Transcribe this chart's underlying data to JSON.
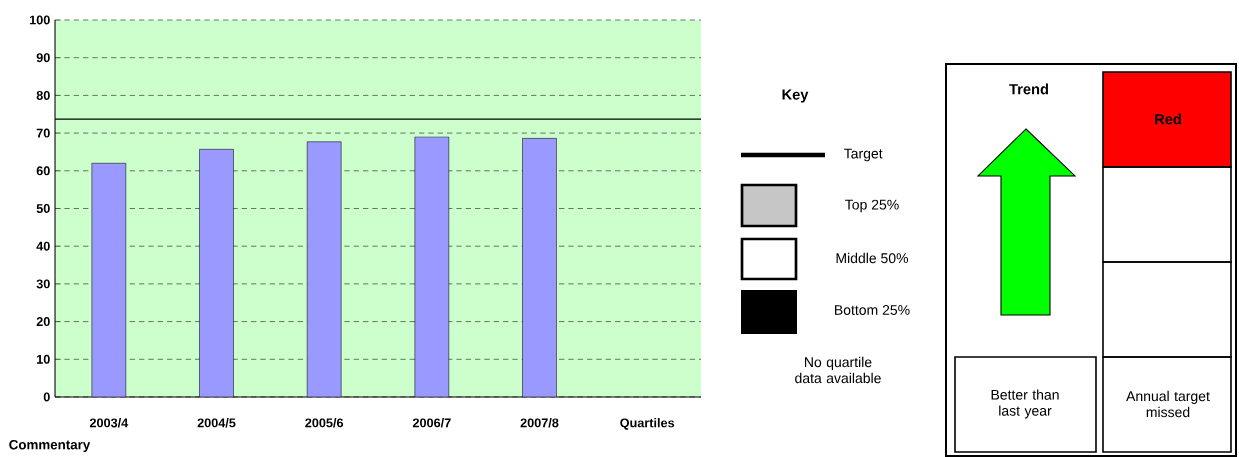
{
  "chart_data": {
    "type": "bar",
    "categories": [
      "2003/4",
      "2004/5",
      "2005/6",
      "2006/7",
      "2007/8",
      "Quartiles"
    ],
    "values": [
      62.0,
      65.7,
      67.7,
      69.0,
      68.6,
      null
    ],
    "color": "#9999ff",
    "ylim": [
      0,
      100
    ],
    "yticks": [
      0,
      10,
      20,
      30,
      40,
      50,
      60,
      70,
      80,
      90,
      100
    ],
    "grid": "y",
    "ref_lines": [
      {
        "axis": "y",
        "value": 73.7,
        "label": "Target",
        "color": "#000000"
      }
    ],
    "annotations": [
      "Key",
      "Top 25%",
      "Middle 50%",
      "Bottom 25%",
      "No quartile data available",
      "Trend",
      "Red",
      "Better than last year",
      "Annual target missed",
      "Commentary"
    ]
  }
}
